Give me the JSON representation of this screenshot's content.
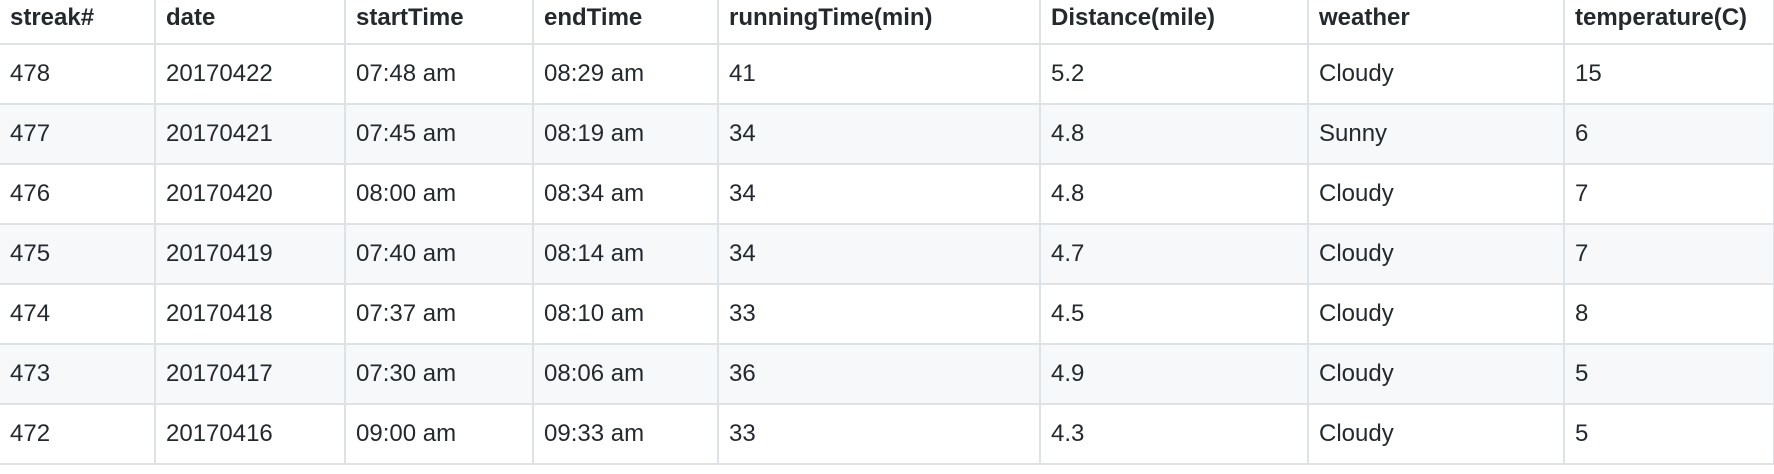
{
  "table": {
    "headers": [
      "streak#",
      "date",
      "startTime",
      "endTime",
      "runningTime(min)",
      "Distance(mile)",
      "weather",
      "temperature(C)"
    ],
    "rows": [
      [
        "478",
        "20170422",
        "07:48 am",
        "08:29 am",
        "41",
        "5.2",
        "Cloudy",
        "15"
      ],
      [
        "477",
        "20170421",
        "07:45 am",
        "08:19 am",
        "34",
        "4.8",
        "Sunny",
        "6"
      ],
      [
        "476",
        "20170420",
        "08:00 am",
        "08:34 am",
        "34",
        "4.8",
        "Cloudy",
        "7"
      ],
      [
        "475",
        "20170419",
        "07:40 am",
        "08:14 am",
        "34",
        "4.7",
        "Cloudy",
        "7"
      ],
      [
        "474",
        "20170418",
        "07:37 am",
        "08:10 am",
        "33",
        "4.5",
        "Cloudy",
        "8"
      ],
      [
        "473",
        "20170417",
        "07:30 am",
        "08:06 am",
        "36",
        "4.9",
        "Cloudy",
        "5"
      ],
      [
        "472",
        "20170416",
        "09:00 am",
        "09:33 am",
        "33",
        "4.3",
        "Cloudy",
        "5"
      ]
    ]
  }
}
